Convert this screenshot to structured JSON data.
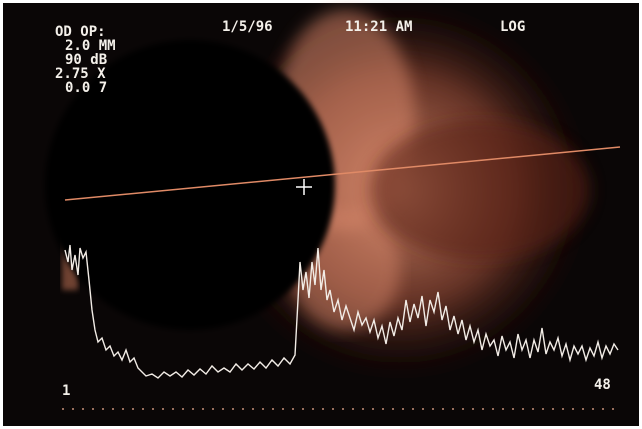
{
  "header": {
    "settings": [
      "OD OP:",
      "2.0 MM",
      "90 dB",
      "2.75 X",
      "0.0 7"
    ],
    "date": "1/5/96",
    "time": "11:21 AM",
    "mode": "LOG"
  },
  "scale": {
    "start": "1",
    "end": "48"
  }
}
